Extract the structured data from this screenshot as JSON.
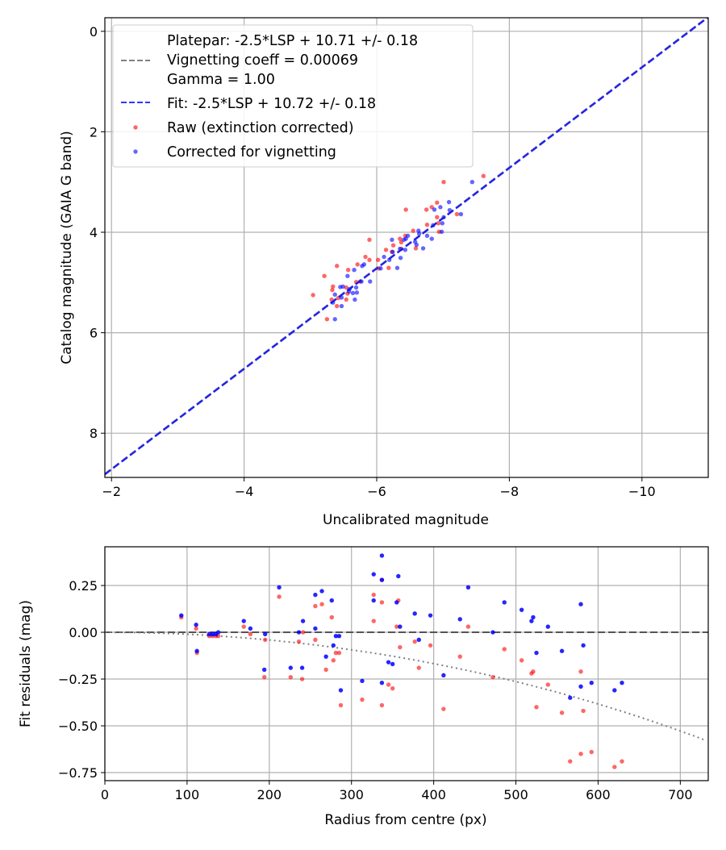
{
  "chart_data": [
    {
      "type": "scatter",
      "xlabel": "Uncalibrated magnitude",
      "ylabel": "Catalog magnitude (GAIA G band)",
      "xlim": [
        -1.9,
        -11.0
      ],
      "ylim": [
        8.88,
        -0.27
      ],
      "grid": true,
      "xticks": [
        -2,
        -4,
        -6,
        -8,
        -10
      ],
      "xtick_labels": [
        "−2",
        "−4",
        "−6",
        "−8",
        "−10"
      ],
      "yticks": [
        0,
        2,
        4,
        6,
        8
      ],
      "ytick_labels": [
        "0",
        "2",
        "4",
        "6",
        "8"
      ],
      "legend_placement": "top-left",
      "legend": {
        "platepar_label": [
          "Platepar: -2.5*LSP + 10.71 +/- 0.18",
          "Vignetting coeff = 0.00069",
          "Gamma = 1.00"
        ],
        "fit_label": "Fit: -2.5*LSP + 10.72 +/- 0.18",
        "raw_label": "Raw (extinction corrected)",
        "corrected_label": "Corrected for vignetting"
      },
      "lines": [
        {
          "name": "Platepar",
          "slope": 1,
          "intercept": 10.71,
          "color": "#808080",
          "style": "dashed"
        },
        {
          "name": "Fit",
          "slope": 1,
          "intercept": 10.72,
          "color": "#0000ff",
          "style": "dashed"
        }
      ],
      "series": [
        {
          "name": "Raw (extinction corrected)",
          "color": "#ff0000",
          "points": [
            [
              -7.61,
              2.88
            ],
            [
              -7.01,
              3.0
            ],
            [
              -6.44,
              3.55
            ],
            [
              -6.75,
              3.55
            ],
            [
              -6.83,
              3.5
            ],
            [
              -6.91,
              3.41
            ],
            [
              -6.91,
              3.7
            ],
            [
              -7.21,
              3.64
            ],
            [
              -6.76,
              3.85
            ],
            [
              -6.94,
              3.99
            ],
            [
              -6.55,
              3.97
            ],
            [
              -6.43,
              4.07
            ],
            [
              -6.35,
              4.13
            ],
            [
              -6.37,
              4.2
            ],
            [
              -6.25,
              4.26
            ],
            [
              -6.37,
              4.33
            ],
            [
              -6.59,
              4.32
            ],
            [
              -5.89,
              4.15
            ],
            [
              -6.14,
              4.35
            ],
            [
              -6.23,
              4.39
            ],
            [
              -5.83,
              4.49
            ],
            [
              -5.89,
              4.55
            ],
            [
              -6.02,
              4.55
            ],
            [
              -5.71,
              4.64
            ],
            [
              -5.57,
              4.75
            ],
            [
              -5.4,
              4.67
            ],
            [
              -5.21,
              4.87
            ],
            [
              -5.34,
              5.08
            ],
            [
              -5.33,
              5.15
            ],
            [
              -5.54,
              5.1
            ],
            [
              -5.56,
              5.22
            ],
            [
              -5.69,
              4.99
            ],
            [
              -5.04,
              5.25
            ],
            [
              -5.32,
              5.34
            ],
            [
              -5.4,
              5.47
            ],
            [
              -5.42,
              5.31
            ],
            [
              -5.54,
              5.34
            ],
            [
              -5.25,
              5.73
            ],
            [
              -6.03,
              4.72
            ],
            [
              -6.18,
              4.71
            ],
            [
              -5.75,
              4.98
            ],
            [
              -6.93,
              3.82
            ]
          ]
        },
        {
          "name": "Corrected for vignetting",
          "color": "#0000ff",
          "points": [
            [
              -7.44,
              3.0
            ],
            [
              -7.09,
              3.4
            ],
            [
              -6.96,
              3.5
            ],
            [
              -7.1,
              3.56
            ],
            [
              -6.87,
              3.55
            ],
            [
              -7.27,
              3.64
            ],
            [
              -7.01,
              3.7
            ],
            [
              -6.99,
              3.82
            ],
            [
              -6.85,
              3.86
            ],
            [
              -6.98,
              3.99
            ],
            [
              -6.63,
              3.97
            ],
            [
              -6.76,
              4.07
            ],
            [
              -6.83,
              4.13
            ],
            [
              -6.47,
              4.07
            ],
            [
              -6.44,
              4.13
            ],
            [
              -6.23,
              4.15
            ],
            [
              -6.41,
              4.15
            ],
            [
              -6.58,
              4.19
            ],
            [
              -6.6,
              4.25
            ],
            [
              -6.7,
              4.32
            ],
            [
              -6.43,
              4.35
            ],
            [
              -6.35,
              4.33
            ],
            [
              -6.24,
              4.39
            ],
            [
              -6.11,
              4.49
            ],
            [
              -6.19,
              4.55
            ],
            [
              -6.36,
              4.51
            ],
            [
              -6.31,
              4.71
            ],
            [
              -6.06,
              4.72
            ],
            [
              -5.81,
              4.64
            ],
            [
              -5.78,
              4.67
            ],
            [
              -5.66,
              4.75
            ],
            [
              -5.56,
              4.87
            ],
            [
              -5.9,
              4.98
            ],
            [
              -5.77,
              4.98
            ],
            [
              -5.45,
              5.09
            ],
            [
              -5.49,
              5.08
            ],
            [
              -5.59,
              5.13
            ],
            [
              -5.69,
              5.1
            ],
            [
              -5.64,
              5.21
            ],
            [
              -5.7,
              5.2
            ],
            [
              -5.37,
              5.24
            ],
            [
              -5.47,
              5.3
            ],
            [
              -5.67,
              5.34
            ],
            [
              -5.34,
              5.4
            ],
            [
              -5.47,
              5.47
            ],
            [
              -5.37,
              5.73
            ],
            [
              -5.58,
              5.18
            ],
            [
              -6.64,
              4.03
            ]
          ]
        }
      ]
    },
    {
      "type": "scatter",
      "xlabel": "Radius from centre (px)",
      "ylabel": "Fit residuals (mag)",
      "xlim": [
        0,
        734
      ],
      "ylim": [
        -0.793,
        0.457
      ],
      "grid": true,
      "xticks": [
        0,
        100,
        200,
        300,
        400,
        500,
        600,
        700
      ],
      "xtick_labels": [
        "0",
        "100",
        "200",
        "300",
        "400",
        "500",
        "600",
        "700"
      ],
      "yticks": [
        0.25,
        0,
        -0.25,
        -0.5,
        -0.75
      ],
      "ytick_labels": [
        "0.25",
        "0.00",
        "−0.25",
        "−0.50",
        "−0.75"
      ],
      "reference_lines": [
        {
          "name": "zero",
          "value": 0,
          "color": "#555555",
          "style": "dashed"
        },
        {
          "name": "vignetting model",
          "vignetting_coeff": 0.00069,
          "color": "#808080",
          "style": "dotted"
        }
      ],
      "series": [
        {
          "name": "Raw",
          "color": "#ff0000",
          "points": [
            [
              93,
              0.08
            ],
            [
              111,
              0.02
            ],
            [
              112,
              -0.11
            ],
            [
              127,
              -0.02
            ],
            [
              131,
              -0.02
            ],
            [
              135,
              -0.02
            ],
            [
              138,
              -0.02
            ],
            [
              169,
              0.03
            ],
            [
              177,
              -0.01
            ],
            [
              194,
              -0.24
            ],
            [
              195,
              -0.04
            ],
            [
              212,
              0.19
            ],
            [
              226,
              -0.24
            ],
            [
              236,
              -0.05
            ],
            [
              240,
              -0.25
            ],
            [
              241,
              0.0
            ],
            [
              256,
              0.14
            ],
            [
              256,
              -0.04
            ],
            [
              264,
              0.15
            ],
            [
              269,
              -0.2
            ],
            [
              276,
              0.08
            ],
            [
              278,
              -0.15
            ],
            [
              281,
              -0.11
            ],
            [
              285,
              -0.11
            ],
            [
              287,
              -0.39
            ],
            [
              313,
              -0.36
            ],
            [
              327,
              0.2
            ],
            [
              327,
              0.06
            ],
            [
              337,
              0.28
            ],
            [
              337,
              -0.39
            ],
            [
              337,
              0.16
            ],
            [
              345,
              -0.28
            ],
            [
              350,
              -0.3
            ],
            [
              355,
              0.03
            ],
            [
              357,
              0.17
            ],
            [
              359,
              -0.08
            ],
            [
              377,
              -0.05
            ],
            [
              382,
              -0.19
            ],
            [
              396,
              -0.07
            ],
            [
              412,
              -0.41
            ],
            [
              432,
              -0.13
            ],
            [
              442,
              0.03
            ],
            [
              472,
              -0.24
            ],
            [
              486,
              -0.09
            ],
            [
              507,
              -0.15
            ],
            [
              519,
              -0.22
            ],
            [
              521,
              -0.21
            ],
            [
              525,
              -0.4
            ],
            [
              539,
              -0.28
            ],
            [
              556,
              -0.43
            ],
            [
              566,
              -0.69
            ],
            [
              579,
              -0.21
            ],
            [
              579,
              -0.65
            ],
            [
              582,
              -0.42
            ],
            [
              592,
              -0.64
            ],
            [
              620,
              -0.72
            ],
            [
              629,
              -0.69
            ]
          ]
        },
        {
          "name": "Corrected",
          "color": "#0000ff",
          "points": [
            [
              93,
              0.09
            ],
            [
              111,
              0.04
            ],
            [
              112,
              -0.1
            ],
            [
              127,
              -0.01
            ],
            [
              131,
              -0.01
            ],
            [
              135,
              -0.01
            ],
            [
              138,
              0.0
            ],
            [
              169,
              0.06
            ],
            [
              177,
              0.02
            ],
            [
              194,
              -0.2
            ],
            [
              195,
              -0.01
            ],
            [
              212,
              0.24
            ],
            [
              226,
              -0.19
            ],
            [
              236,
              0.0
            ],
            [
              240,
              -0.19
            ],
            [
              241,
              0.06
            ],
            [
              256,
              0.2
            ],
            [
              256,
              0.02
            ],
            [
              264,
              0.22
            ],
            [
              269,
              -0.13
            ],
            [
              276,
              0.17
            ],
            [
              278,
              -0.07
            ],
            [
              281,
              -0.02
            ],
            [
              285,
              -0.02
            ],
            [
              287,
              -0.31
            ],
            [
              313,
              -0.26
            ],
            [
              327,
              0.31
            ],
            [
              327,
              0.17
            ],
            [
              337,
              0.41
            ],
            [
              337,
              -0.27
            ],
            [
              337,
              0.28
            ],
            [
              345,
              -0.16
            ],
            [
              350,
              -0.17
            ],
            [
              355,
              0.16
            ],
            [
              357,
              0.3
            ],
            [
              359,
              0.03
            ],
            [
              377,
              0.1
            ],
            [
              382,
              -0.04
            ],
            [
              396,
              0.09
            ],
            [
              412,
              -0.23
            ],
            [
              432,
              0.07
            ],
            [
              442,
              0.24
            ],
            [
              472,
              0.0
            ],
            [
              486,
              0.16
            ],
            [
              507,
              0.12
            ],
            [
              519,
              0.06
            ],
            [
              521,
              0.08
            ],
            [
              525,
              -0.11
            ],
            [
              539,
              0.03
            ],
            [
              556,
              -0.1
            ],
            [
              566,
              -0.35
            ],
            [
              579,
              0.15
            ],
            [
              579,
              -0.29
            ],
            [
              582,
              -0.07
            ],
            [
              592,
              -0.27
            ],
            [
              620,
              -0.31
            ],
            [
              629,
              -0.27
            ]
          ]
        }
      ]
    }
  ]
}
